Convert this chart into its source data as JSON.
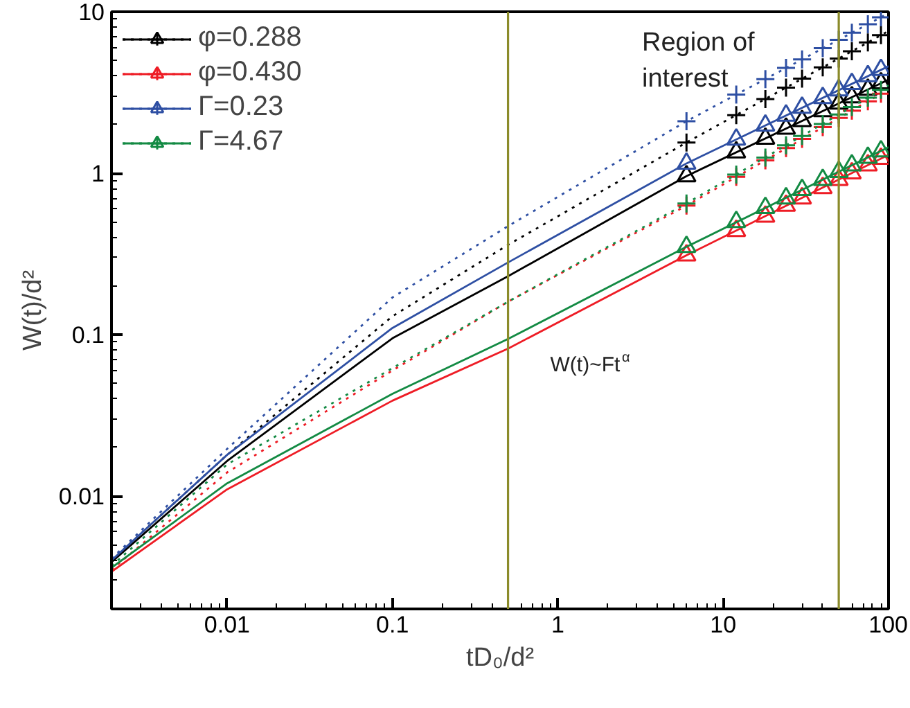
{
  "chart_data": {
    "type": "line",
    "xlabel": "tD₀/d²",
    "ylabel": "W(t)/d²",
    "log": "xy",
    "xlim": [
      0.002,
      100
    ],
    "ylim": [
      0.002,
      10
    ],
    "xticks": [
      0.01,
      0.1,
      1,
      10,
      100
    ],
    "yticks": [
      0.01,
      0.1,
      1,
      10
    ],
    "grid": false,
    "legend": "top left",
    "ref_lines": [
      {
        "axis": "x",
        "value": 0.5,
        "color": "#8b8b2a"
      },
      {
        "axis": "x",
        "value": 50,
        "color": "#8b8b2a"
      }
    ],
    "annotations": [
      "Region of interest",
      "W(t)~Ft$^{α}$"
    ],
    "series": [
      {
        "name": "φ=0.288",
        "color": "#000000",
        "line_style": "solid",
        "marker": "none",
        "x": [
          0.002,
          0.01,
          0.1,
          0.5,
          6,
          100
        ],
        "values": [
          0.0039,
          0.0165,
          0.095,
          0.23,
          0.96,
          3.8
        ]
      },
      {
        "type": "scatter",
        "color": "#000000",
        "marker": "triangle",
        "x": [
          6,
          12,
          18,
          24,
          30,
          40,
          50,
          60,
          75,
          90
        ],
        "values": [
          0.96,
          1.35,
          1.64,
          1.89,
          2.11,
          2.43,
          2.71,
          2.96,
          3.3,
          3.61
        ]
      },
      {
        "color": "#000000",
        "line_style": "dotted",
        "marker": "none",
        "x": [
          0.002,
          0.01,
          0.1,
          0.5,
          6,
          100
        ],
        "values": [
          0.004,
          0.018,
          0.13,
          0.36,
          1.55,
          7.6
        ]
      },
      {
        "type": "scatter",
        "color": "#000000",
        "marker": "cross",
        "x": [
          6,
          12,
          18,
          24,
          30,
          40,
          50,
          60,
          75,
          90
        ],
        "values": [
          1.55,
          2.29,
          2.88,
          3.39,
          3.85,
          4.53,
          5.13,
          5.69,
          6.46,
          7.16
        ]
      },
      {
        "name": "φ=0.430",
        "color": "#ee1c25",
        "line_style": "solid",
        "marker": "none",
        "x": [
          0.002,
          0.01,
          0.1,
          0.5,
          6,
          100
        ],
        "values": [
          0.0034,
          0.011,
          0.039,
          0.082,
          0.31,
          1.3
        ]
      },
      {
        "type": "scatter",
        "color": "#ee1c25",
        "marker": "triangle",
        "x": [
          6,
          12,
          18,
          24,
          30,
          40,
          50,
          60,
          75,
          90
        ],
        "values": [
          0.31,
          0.44,
          0.54,
          0.63,
          0.7,
          0.81,
          0.91,
          1.0,
          1.12,
          1.23
        ]
      },
      {
        "color": "#ee1c25",
        "line_style": "dotted",
        "marker": "none",
        "x": [
          0.002,
          0.01,
          0.1,
          0.5,
          6,
          100
        ],
        "values": [
          0.0035,
          0.014,
          0.06,
          0.16,
          0.63,
          3.3
        ]
      },
      {
        "type": "scatter",
        "color": "#ee1c25",
        "marker": "cross",
        "x": [
          6,
          12,
          18,
          24,
          30,
          40,
          50,
          60,
          75,
          90
        ],
        "values": [
          0.63,
          0.95,
          1.2,
          1.43,
          1.63,
          1.93,
          2.2,
          2.44,
          2.79,
          3.11
        ]
      },
      {
        "name": "Γ=0.23",
        "color": "#2e4fa3",
        "line_style": "solid",
        "marker": "none",
        "x": [
          0.002,
          0.01,
          0.1,
          0.5,
          6,
          100
        ],
        "values": [
          0.004,
          0.018,
          0.11,
          0.28,
          1.15,
          4.6
        ]
      },
      {
        "type": "scatter",
        "color": "#2e4fa3",
        "marker": "triangle",
        "x": [
          6,
          12,
          18,
          24,
          30,
          40,
          50,
          60,
          75,
          90
        ],
        "values": [
          1.15,
          1.62,
          1.98,
          2.28,
          2.55,
          2.93,
          3.27,
          3.58,
          4.0,
          4.37
        ]
      },
      {
        "color": "#2e4fa3",
        "line_style": "dotted",
        "marker": "none",
        "x": [
          0.002,
          0.01,
          0.1,
          0.5,
          6,
          100
        ],
        "values": [
          0.0041,
          0.0196,
          0.17,
          0.47,
          2.1,
          9.8
        ]
      },
      {
        "type": "scatter",
        "color": "#2e4fa3",
        "marker": "cross",
        "x": [
          6,
          12,
          18,
          24,
          30,
          40,
          50,
          60,
          75,
          90
        ],
        "values": [
          2.1,
          3.07,
          3.83,
          4.49,
          5.07,
          5.95,
          6.71,
          7.42,
          8.38,
          9.25
        ]
      },
      {
        "name": "Γ=4.67",
        "color": "#138a43",
        "line_style": "solid",
        "marker": "none",
        "x": [
          0.002,
          0.01,
          0.1,
          0.5,
          6,
          100
        ],
        "values": [
          0.0036,
          0.012,
          0.043,
          0.094,
          0.35,
          1.45
        ]
      },
      {
        "type": "scatter",
        "color": "#138a43",
        "marker": "triangle",
        "x": [
          6,
          12,
          18,
          24,
          30,
          40,
          50,
          60,
          75,
          90
        ],
        "values": [
          0.35,
          0.5,
          0.61,
          0.7,
          0.79,
          0.91,
          1.02,
          1.12,
          1.25,
          1.37
        ]
      },
      {
        "color": "#138a43",
        "line_style": "dotted",
        "marker": "none",
        "x": [
          0.002,
          0.01,
          0.1,
          0.5,
          6,
          100
        ],
        "values": [
          0.0037,
          0.0157,
          0.062,
          0.16,
          0.65,
          3.5
        ]
      },
      {
        "type": "scatter",
        "color": "#138a43",
        "marker": "cross",
        "x": [
          6,
          12,
          18,
          24,
          30,
          40,
          50,
          60,
          75,
          90
        ],
        "values": [
          0.65,
          0.98,
          1.25,
          1.49,
          1.7,
          2.02,
          2.31,
          2.57,
          2.94,
          3.28
        ]
      }
    ]
  }
}
